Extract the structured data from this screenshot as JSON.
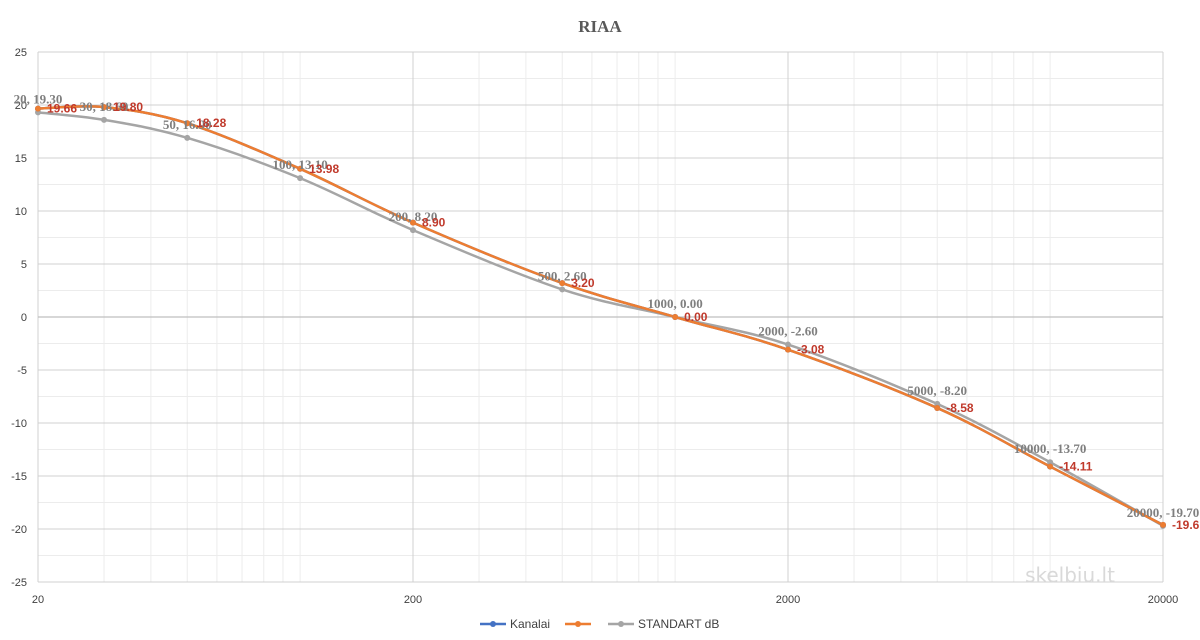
{
  "chart_data": {
    "type": "line",
    "title": "RIAA",
    "x_scale": "log",
    "xlim": [
      20,
      20000
    ],
    "ylim": [
      -25,
      25
    ],
    "x_ticks": [
      20,
      200,
      2000,
      20000
    ],
    "x_tick_labels": [
      "20",
      "200",
      "2000",
      "20000"
    ],
    "y_ticks": [
      -25,
      -20,
      -15,
      -10,
      -5,
      0,
      5,
      10,
      15,
      20,
      25
    ],
    "y_tick_labels": [
      "-25",
      "-20",
      "-15",
      "-10",
      "-5",
      "0",
      "5",
      "10",
      "15",
      "20",
      "25"
    ],
    "grid": true,
    "legend_position": "bottom",
    "series": [
      {
        "name": "Kanalai",
        "color": "#4472c4",
        "x": [
          20,
          30,
          50,
          100,
          200,
          500,
          1000,
          2000,
          5000,
          10000,
          20000
        ],
        "y": [
          19.66,
          19.8,
          18.28,
          13.98,
          8.9,
          3.2,
          0.0,
          -3.08,
          -8.58,
          -14.11,
          -19.61
        ]
      },
      {
        "name": "",
        "color": "#ed7d31",
        "x": [
          20,
          30,
          50,
          100,
          200,
          500,
          1000,
          2000,
          5000,
          10000,
          20000
        ],
        "y": [
          19.66,
          19.8,
          18.28,
          13.98,
          8.9,
          3.2,
          0.0,
          -3.08,
          -8.58,
          -14.11,
          -19.61
        ],
        "data_labels": [
          "19.66",
          "19.80",
          "18.28",
          "13.98",
          "8.90",
          "3.20",
          "0.00",
          "-3.08",
          "-8.58",
          "-14.11",
          "-19.61"
        ]
      },
      {
        "name": "STANDART dB",
        "color": "#a5a5a5",
        "x": [
          20,
          30,
          50,
          100,
          200,
          500,
          1000,
          2000,
          5000,
          10000,
          20000
        ],
        "y": [
          19.3,
          18.6,
          16.9,
          13.1,
          8.2,
          2.6,
          0.0,
          -2.6,
          -8.2,
          -13.7,
          -19.7
        ],
        "data_labels": [
          "20, 19.30",
          "30, 18.60",
          "50, 16.90",
          "100, 13.10",
          "200, 8.20",
          "500, 2.60",
          "1000, 0.00",
          "2000, -2.60",
          "5000, -8.20",
          "10000, -13.70",
          "20000, -19.70"
        ]
      }
    ]
  },
  "watermark_text": "skelbiu.lt"
}
